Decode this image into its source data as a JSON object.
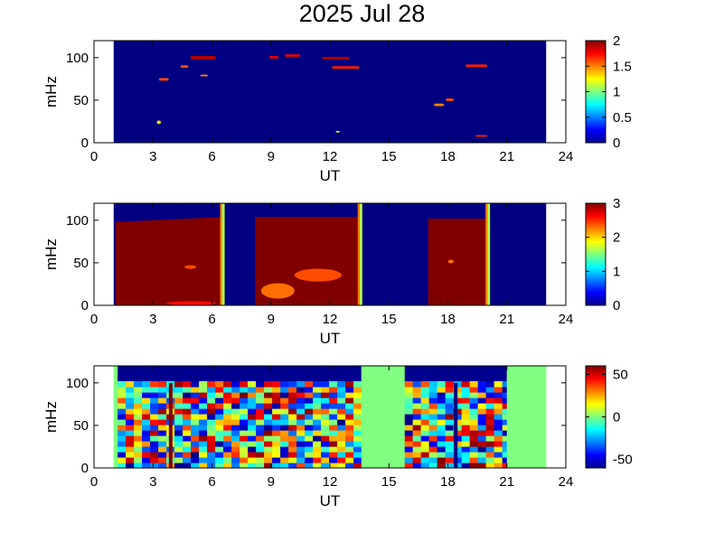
{
  "chart_data": [
    {
      "type": "heatmap",
      "title": "2025 Jul 28",
      "xlabel": "UT",
      "ylabel": "mHz",
      "xlim": [
        0,
        24
      ],
      "ylim": [
        0,
        120
      ],
      "xticks": [
        "0",
        "3",
        "6",
        "9",
        "12",
        "15",
        "18",
        "21",
        "24"
      ],
      "yticks": [
        "0",
        "50",
        "100"
      ],
      "data_range_ut": [
        1,
        23
      ],
      "colorbar": {
        "min": 0,
        "max": 2,
        "ticks": [
          "0",
          "0.5",
          "1",
          "1.5",
          "2"
        ]
      },
      "background_value": 0,
      "features": [
        {
          "ut": [
            4.9,
            6.2
          ],
          "mhz": [
            98,
            102
          ],
          "value": 1.9
        },
        {
          "ut": [
            4.4,
            4.8
          ],
          "mhz": [
            88,
            91
          ],
          "value": 1.6
        },
        {
          "ut": [
            5.4,
            5.8
          ],
          "mhz": [
            78,
            80
          ],
          "value": 1.5
        },
        {
          "ut": [
            3.3,
            3.8
          ],
          "mhz": [
            73,
            76
          ],
          "value": 1.6
        },
        {
          "ut": [
            3.2,
            3.4
          ],
          "mhz": [
            22,
            26
          ],
          "value": 1.3
        },
        {
          "ut": [
            8.9,
            9.4
          ],
          "mhz": [
            99,
            102
          ],
          "value": 1.8
        },
        {
          "ut": [
            9.7,
            10.5
          ],
          "mhz": [
            101,
            104
          ],
          "value": 1.8
        },
        {
          "ut": [
            11.6,
            13.0
          ],
          "mhz": [
            98,
            101
          ],
          "value": 1.9
        },
        {
          "ut": [
            12.1,
            13.5
          ],
          "mhz": [
            87,
            90
          ],
          "value": 1.7
        },
        {
          "ut": [
            12.3,
            12.5
          ],
          "mhz": [
            12,
            14
          ],
          "value": 1.2
        },
        {
          "ut": [
            17.3,
            17.8
          ],
          "mhz": [
            43,
            46
          ],
          "value": 1.5
        },
        {
          "ut": [
            17.9,
            18.3
          ],
          "mhz": [
            49,
            52
          ],
          "value": 1.6
        },
        {
          "ut": [
            18.9,
            20.0
          ],
          "mhz": [
            89,
            92
          ],
          "value": 1.7
        },
        {
          "ut": [
            19.4,
            20.0
          ],
          "mhz": [
            7,
            9
          ],
          "value": 1.7
        }
      ]
    },
    {
      "type": "heatmap",
      "xlabel": "UT",
      "ylabel": "mHz",
      "xlim": [
        0,
        24
      ],
      "ylim": [
        0,
        120
      ],
      "xticks": [
        "0",
        "3",
        "6",
        "9",
        "12",
        "15",
        "18",
        "21",
        "24"
      ],
      "yticks": [
        "0",
        "50",
        "100"
      ],
      "data_range_ut": [
        1,
        23
      ],
      "colorbar": {
        "min": 0,
        "max": 3,
        "ticks": [
          "0",
          "1",
          "2",
          "3"
        ]
      },
      "background_value": 0,
      "high_value": 3,
      "segments": [
        {
          "ut": [
            1.1,
            6.6
          ],
          "top_mhz": [
            98,
            104
          ]
        },
        {
          "ut": [
            8.2,
            13.6
          ],
          "top_mhz": [
            104,
            104
          ]
        },
        {
          "ut": [
            17.0,
            20.1
          ],
          "top_mhz": [
            102,
            102
          ]
        }
      ],
      "features": [
        {
          "ut": [
            4.6,
            5.2
          ],
          "mhz": [
            43,
            47
          ],
          "value": 2.4
        },
        {
          "ut": [
            8.5,
            10.2
          ],
          "mhz": [
            8,
            26
          ],
          "value": 2.3
        },
        {
          "ut": [
            10.2,
            12.6
          ],
          "mhz": [
            28,
            43
          ],
          "value": 2.4
        },
        {
          "ut": [
            3.7,
            6.2
          ],
          "mhz": [
            0,
            5
          ],
          "value": 2.6
        },
        {
          "ut": [
            18.0,
            18.3
          ],
          "mhz": [
            50,
            53
          ],
          "value": 2.3
        }
      ]
    },
    {
      "type": "heatmap",
      "xlabel": "UT",
      "ylabel": "mHz",
      "xlim": [
        0,
        24
      ],
      "ylim": [
        0,
        120
      ],
      "xticks": [
        "0",
        "3",
        "6",
        "9",
        "12",
        "15",
        "18",
        "21",
        "24"
      ],
      "yticks": [
        "0",
        "50",
        "100"
      ],
      "data_range_ut": [
        1,
        23
      ],
      "colorbar": {
        "min": -60,
        "max": 60,
        "ticks": [
          "50",
          "0",
          "-50"
        ]
      },
      "gap_value": 0,
      "data_segments": [
        {
          "ut": [
            1.2,
            13.6
          ],
          "top_mhz": [
            100,
            118
          ]
        },
        {
          "ut": [
            15.8,
            21.0
          ],
          "top_mhz": [
            100,
            118
          ]
        }
      ],
      "gaps_ut": [
        [
          1.0,
          1.2
        ],
        [
          13.6,
          15.8
        ],
        [
          21.0,
          23.0
        ]
      ],
      "vertical_markers": [
        {
          "ut": 3.9,
          "mhz": [
            0,
            100
          ],
          "value": 60
        },
        {
          "ut": 18.4,
          "mhz": [
            0,
            100
          ],
          "value": -60
        }
      ]
    }
  ]
}
